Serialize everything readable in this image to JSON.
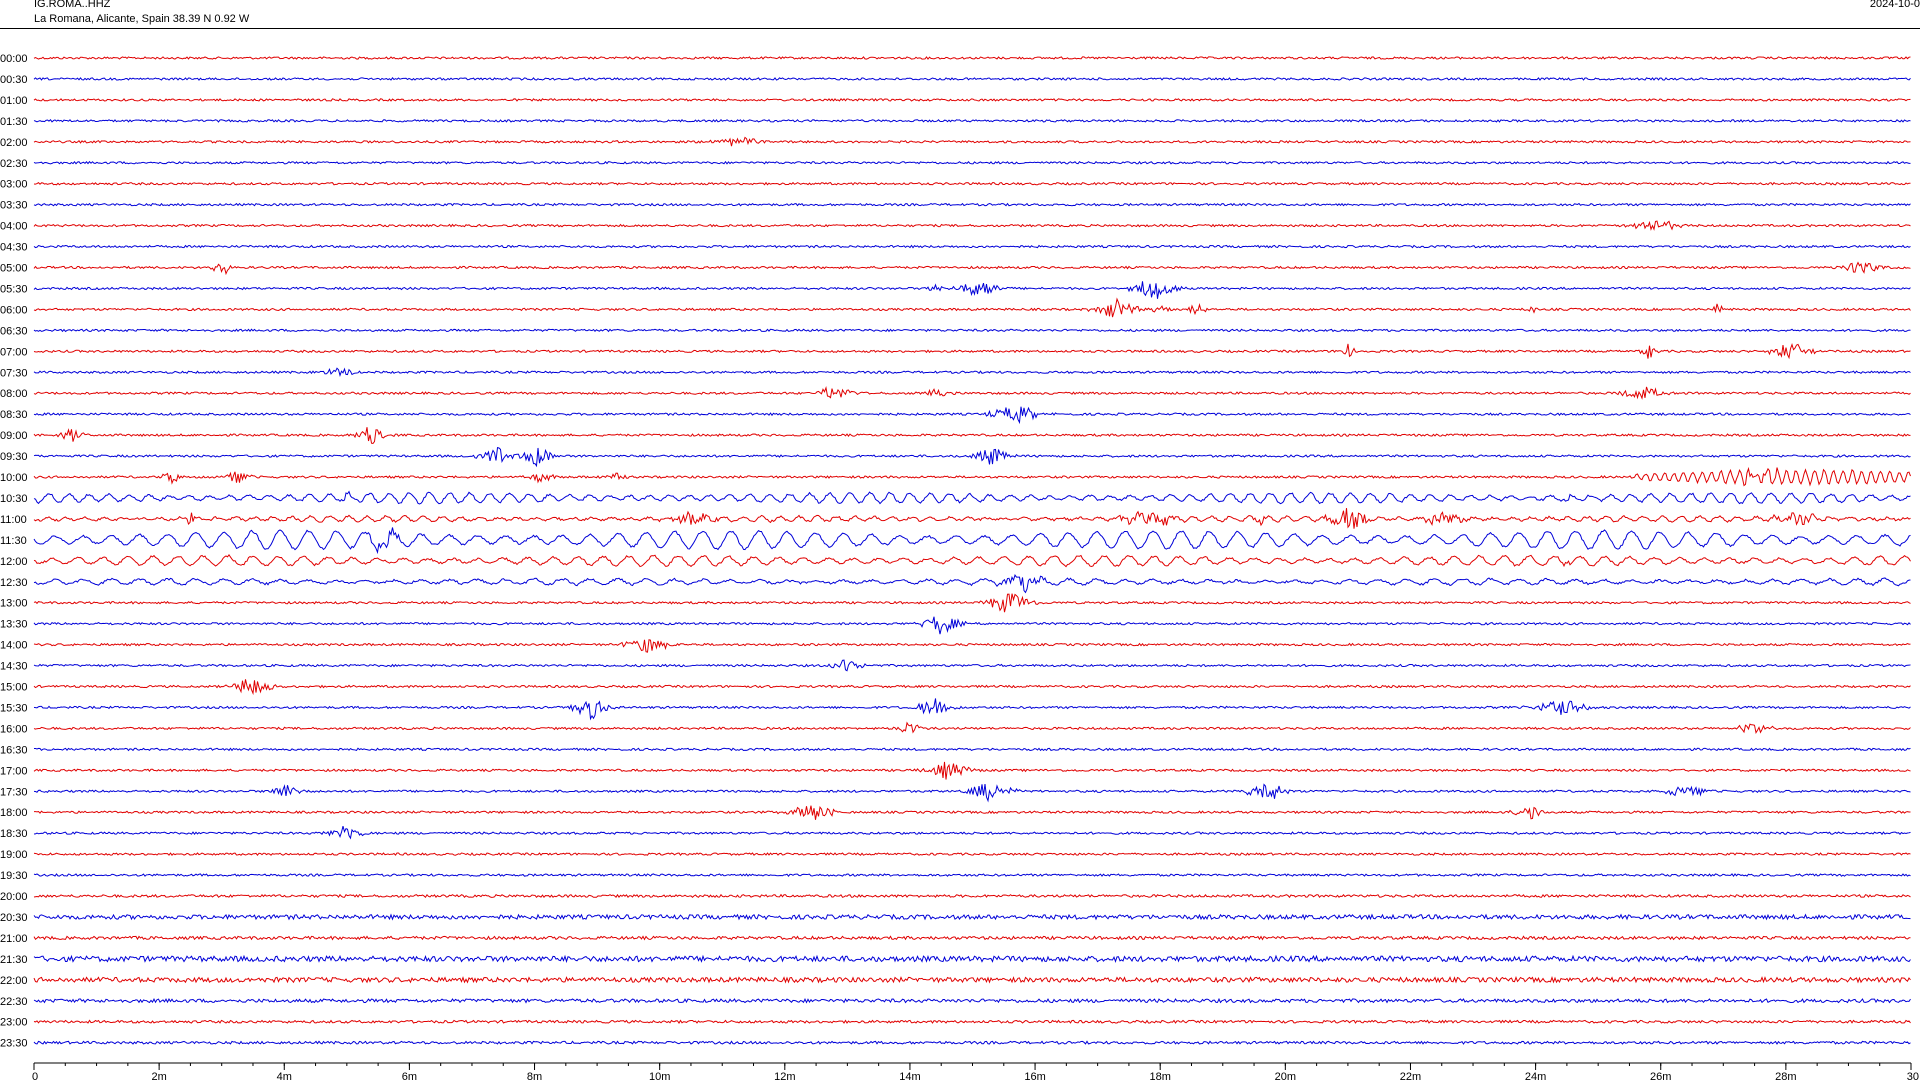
{
  "header": {
    "station": "IG.ROMA..HHZ",
    "location": "La Romana, Alicante, Spain  38.39 N 0.92 W",
    "date": "2024-10-0"
  },
  "colors": {
    "odd_trace": "#e00000",
    "even_trace": "#0000d8",
    "axis": "#000000"
  },
  "chart_data": {
    "type": "line",
    "xlim": [
      0,
      30
    ],
    "x_unit": "minutes",
    "x_ticks": [
      "0",
      "2m",
      "4m",
      "6m",
      "8m",
      "10m",
      "12m",
      "14m",
      "16m",
      "18m",
      "20m",
      "22m",
      "24m",
      "26m",
      "28m",
      "30"
    ],
    "x_tick_values": [
      0,
      2,
      4,
      6,
      8,
      10,
      12,
      14,
      16,
      18,
      20,
      22,
      24,
      26,
      28,
      30
    ],
    "row_labels": [
      "00:00",
      "00:30",
      "01:00",
      "01:30",
      "02:00",
      "02:30",
      "03:00",
      "03:30",
      "04:00",
      "04:30",
      "05:00",
      "05:30",
      "06:00",
      "06:30",
      "07:00",
      "07:30",
      "08:00",
      "08:30",
      "09:00",
      "09:30",
      "10:00",
      "10:30",
      "11:00",
      "11:30",
      "12:00",
      "12:30",
      "13:00",
      "13:30",
      "14:00",
      "14:30",
      "15:00",
      "15:30",
      "16:00",
      "16:30",
      "17:00",
      "17:30",
      "18:00",
      "18:30",
      "19:00",
      "19:30",
      "20:00",
      "20:30",
      "21:00",
      "21:30",
      "22:00",
      "22:30",
      "23:00",
      "23:30"
    ],
    "noise_level": [
      1,
      1,
      1,
      1,
      1,
      1,
      1,
      1,
      1,
      1,
      1,
      1,
      1,
      1,
      1,
      1,
      1,
      1,
      1,
      1,
      1,
      1,
      1,
      1,
      1,
      1,
      1,
      1,
      1,
      1,
      1,
      1,
      1,
      1,
      1,
      1,
      1,
      1,
      1,
      1,
      1.2,
      2,
      1.4,
      2.5,
      2.2,
      1.6,
      1.2,
      1.2
    ],
    "long_period": [
      {
        "row": 20,
        "start": 25.6,
        "end": 30,
        "amp": 7,
        "period": 0.15
      },
      {
        "row": 21,
        "start": 0,
        "end": 30,
        "amp": 5,
        "period": 0.32
      },
      {
        "row": 22,
        "start": 0,
        "end": 30,
        "amp": 2.5,
        "period": 0.3
      },
      {
        "row": 23,
        "start": 0,
        "end": 30,
        "amp": 9,
        "period": 0.45
      },
      {
        "row": 24,
        "start": 0,
        "end": 30,
        "amp": 5,
        "period": 0.4
      },
      {
        "row": 25,
        "start": 0,
        "end": 30,
        "amp": 3,
        "period": 0.45
      }
    ],
    "events": [
      {
        "row": 4,
        "minute": 11.3,
        "amp": 5,
        "width": 0.7
      },
      {
        "row": 8,
        "minute": 25.9,
        "amp": 8,
        "width": 0.6
      },
      {
        "row": 10,
        "minute": 3.0,
        "amp": 9,
        "width": 0.3
      },
      {
        "row": 10,
        "minute": 29.2,
        "amp": 8,
        "width": 0.5
      },
      {
        "row": 11,
        "minute": 14.4,
        "amp": 6,
        "width": 0.2
      },
      {
        "row": 11,
        "minute": 15.1,
        "amp": 10,
        "width": 0.6
      },
      {
        "row": 11,
        "minute": 17.9,
        "amp": 12,
        "width": 0.6
      },
      {
        "row": 12,
        "minute": 17.3,
        "amp": 11,
        "width": 0.6
      },
      {
        "row": 12,
        "minute": 18.0,
        "amp": 9,
        "width": 0.2
      },
      {
        "row": 12,
        "minute": 18.6,
        "amp": 10,
        "width": 0.2
      },
      {
        "row": 12,
        "minute": 24.0,
        "amp": 7,
        "width": 0.15
      },
      {
        "row": 12,
        "minute": 26.9,
        "amp": 8,
        "width": 0.15
      },
      {
        "row": 14,
        "minute": 21.0,
        "amp": 7,
        "width": 0.2
      },
      {
        "row": 14,
        "minute": 25.8,
        "amp": 8,
        "width": 0.2
      },
      {
        "row": 14,
        "minute": 28.1,
        "amp": 9,
        "width": 0.6
      },
      {
        "row": 15,
        "minute": 4.9,
        "amp": 5,
        "width": 0.5
      },
      {
        "row": 16,
        "minute": 12.8,
        "amp": 8,
        "width": 0.5
      },
      {
        "row": 16,
        "minute": 14.4,
        "amp": 4,
        "width": 0.4
      },
      {
        "row": 16,
        "minute": 25.7,
        "amp": 7,
        "width": 0.6
      },
      {
        "row": 17,
        "minute": 15.7,
        "amp": 9,
        "width": 0.7
      },
      {
        "row": 18,
        "minute": 0.6,
        "amp": 8,
        "width": 0.3
      },
      {
        "row": 18,
        "minute": 5.4,
        "amp": 11,
        "width": 0.4
      },
      {
        "row": 19,
        "minute": 7.4,
        "amp": 10,
        "width": 0.5
      },
      {
        "row": 19,
        "minute": 8.0,
        "amp": 12,
        "width": 0.5
      },
      {
        "row": 19,
        "minute": 15.3,
        "amp": 10,
        "width": 0.5
      },
      {
        "row": 20,
        "minute": 2.2,
        "amp": 6,
        "width": 0.3
      },
      {
        "row": 20,
        "minute": 3.2,
        "amp": 8,
        "width": 0.4
      },
      {
        "row": 20,
        "minute": 8.1,
        "amp": 5,
        "width": 0.4
      },
      {
        "row": 20,
        "minute": 9.3,
        "amp": 5,
        "width": 0.3
      },
      {
        "row": 20,
        "minute": 27.6,
        "amp": 10,
        "width": 0.5
      },
      {
        "row": 21,
        "minute": 5.0,
        "amp": 4,
        "width": 0.3
      },
      {
        "row": 21,
        "minute": 24.5,
        "amp": 6,
        "width": 0.1
      },
      {
        "row": 22,
        "minute": 2.5,
        "amp": 10,
        "width": 0.1
      },
      {
        "row": 22,
        "minute": 10.5,
        "amp": 6,
        "width": 0.7
      },
      {
        "row": 22,
        "minute": 17.8,
        "amp": 8,
        "width": 0.8
      },
      {
        "row": 22,
        "minute": 19.6,
        "amp": 6,
        "width": 0.2
      },
      {
        "row": 22,
        "minute": 21.0,
        "amp": 11,
        "width": 0.6
      },
      {
        "row": 22,
        "minute": 22.5,
        "amp": 8,
        "width": 0.6
      },
      {
        "row": 22,
        "minute": 28.2,
        "amp": 6,
        "width": 0.7
      },
      {
        "row": 23,
        "minute": 5.6,
        "amp": 11,
        "width": 0.4
      },
      {
        "row": 24,
        "minute": 24.5,
        "amp": 9,
        "width": 0.1
      },
      {
        "row": 25,
        "minute": 15.8,
        "amp": 9,
        "width": 0.6
      },
      {
        "row": 26,
        "minute": 15.6,
        "amp": 12,
        "width": 0.6
      },
      {
        "row": 27,
        "minute": 14.5,
        "amp": 12,
        "width": 0.5
      },
      {
        "row": 28,
        "minute": 9.8,
        "amp": 9,
        "width": 0.6
      },
      {
        "row": 29,
        "minute": 13.0,
        "amp": 8,
        "width": 0.4
      },
      {
        "row": 30,
        "minute": 3.5,
        "amp": 13,
        "width": 0.5
      },
      {
        "row": 31,
        "minute": 8.9,
        "amp": 12,
        "width": 0.5
      },
      {
        "row": 31,
        "minute": 14.4,
        "amp": 12,
        "width": 0.5
      },
      {
        "row": 31,
        "minute": 24.4,
        "amp": 9,
        "width": 0.7
      },
      {
        "row": 32,
        "minute": 14.0,
        "amp": 8,
        "width": 0.3
      },
      {
        "row": 32,
        "minute": 27.5,
        "amp": 6,
        "width": 0.5
      },
      {
        "row": 34,
        "minute": 14.6,
        "amp": 9,
        "width": 0.6
      },
      {
        "row": 35,
        "minute": 4.0,
        "amp": 9,
        "width": 0.4
      },
      {
        "row": 35,
        "minute": 15.3,
        "amp": 11,
        "width": 0.6
      },
      {
        "row": 35,
        "minute": 19.7,
        "amp": 13,
        "width": 0.5
      },
      {
        "row": 35,
        "minute": 26.4,
        "amp": 9,
        "width": 0.5
      },
      {
        "row": 36,
        "minute": 12.4,
        "amp": 11,
        "width": 0.6
      },
      {
        "row": 36,
        "minute": 23.9,
        "amp": 9,
        "width": 0.4
      },
      {
        "row": 37,
        "minute": 5.0,
        "amp": 8,
        "width": 0.5
      }
    ]
  }
}
